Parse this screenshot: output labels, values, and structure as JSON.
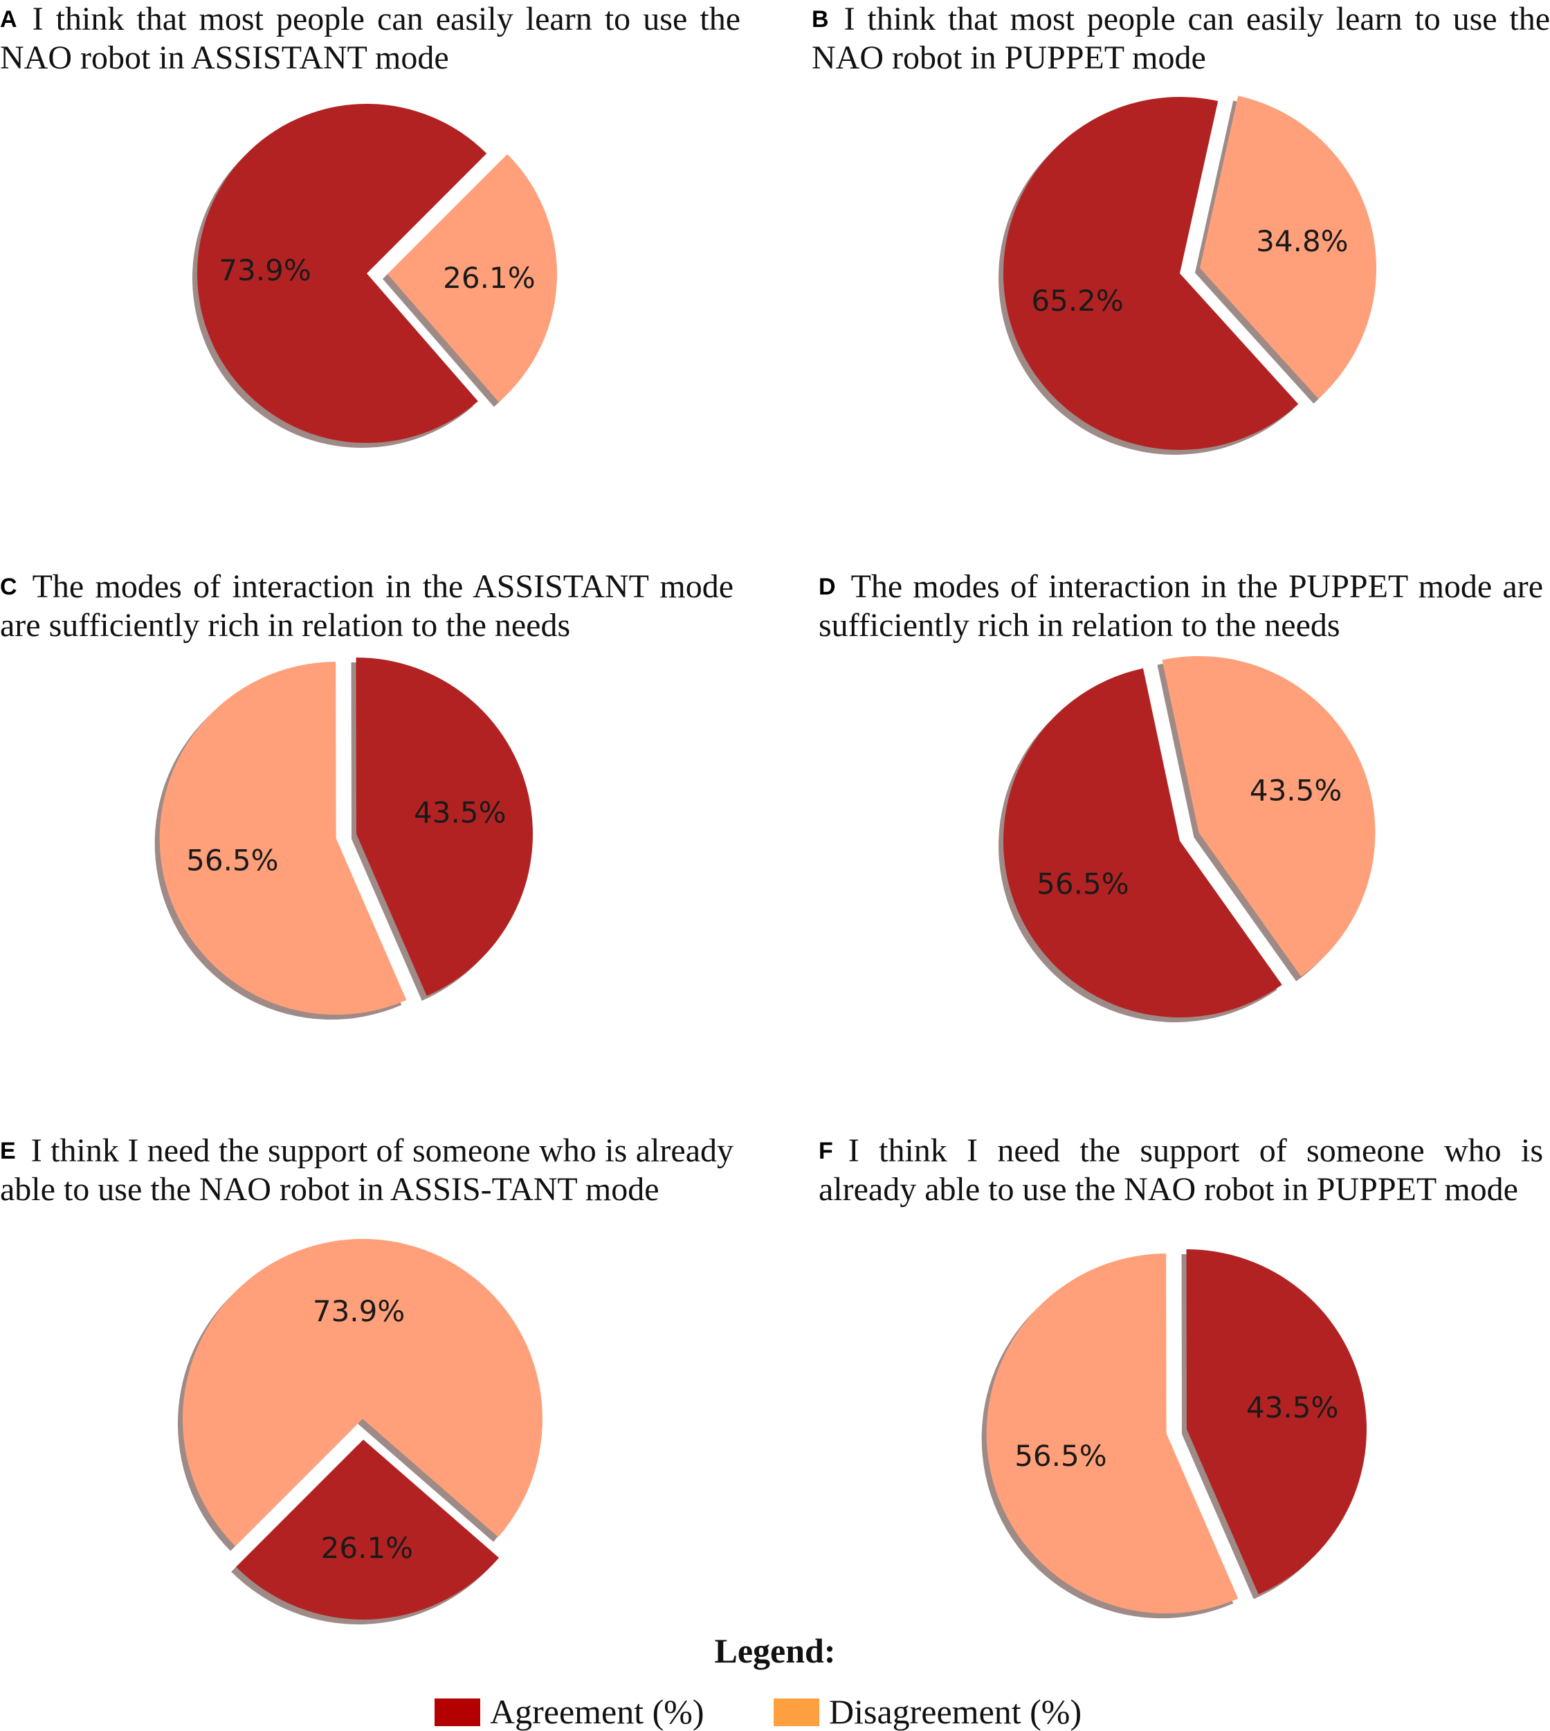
{
  "colors": {
    "agreement": "#b22222",
    "disagreement": "#ffa07a",
    "shadow": "#9e8a86"
  },
  "chart_data": [
    {
      "type": "pie",
      "panel": "A",
      "title": "I think that most people can easily learn to use the NAO robot in ASSISTANT mode",
      "categories": [
        "Agreement (%)",
        "Disagreement (%)"
      ],
      "values": [
        73.9,
        26.1
      ],
      "labels": [
        "73.9%",
        "26.1%"
      ],
      "exploded": "Disagreement (%)"
    },
    {
      "type": "pie",
      "panel": "B",
      "title": "I think that most people can easily learn to use the NAO robot in PUPPET mode",
      "categories": [
        "Agreement (%)",
        "Disagreement (%)"
      ],
      "values": [
        65.2,
        34.8
      ],
      "labels": [
        "65.2%",
        "34.8%"
      ],
      "exploded": "Disagreement (%)"
    },
    {
      "type": "pie",
      "panel": "C",
      "title": "The modes of interaction in the ASSISTANT mode are sufficiently rich in relation to the needs",
      "categories": [
        "Agreement (%)",
        "Disagreement (%)"
      ],
      "values": [
        43.5,
        56.5
      ],
      "labels": [
        "43.5%",
        "56.5%"
      ],
      "exploded": "Disagreement (%)"
    },
    {
      "type": "pie",
      "panel": "D",
      "title": "The modes of interaction in the PUPPET mode are sufficiently rich in relation to the needs",
      "categories": [
        "Agreement (%)",
        "Disagreement (%)"
      ],
      "values": [
        56.5,
        43.5
      ],
      "labels": [
        "56.5%",
        "43.5%"
      ],
      "exploded": "Disagreement (%)"
    },
    {
      "type": "pie",
      "panel": "E",
      "title": "I think I need the support of someone who is already able to use the NAO robot in ASSIS-TANT mode",
      "categories": [
        "Agreement (%)",
        "Disagreement (%)"
      ],
      "values": [
        26.1,
        73.9
      ],
      "labels": [
        "26.1%",
        "73.9%"
      ],
      "exploded": "Disagreement (%)"
    },
    {
      "type": "pie",
      "panel": "F",
      "title": "I think I need the support of someone who is already able to use the NAO robot in PUPPET mode",
      "categories": [
        "Agreement (%)",
        "Disagreement (%)"
      ],
      "values": [
        43.5,
        56.5
      ],
      "labels": [
        "43.5%",
        "56.5%"
      ],
      "exploded": "Disagreement (%)"
    }
  ],
  "legend": {
    "title": "Legend:",
    "items": [
      {
        "label": "Agreement (%)",
        "color": "#b22222"
      },
      {
        "label": "Disagreement (%)",
        "color": "#ffa07a"
      }
    ]
  }
}
